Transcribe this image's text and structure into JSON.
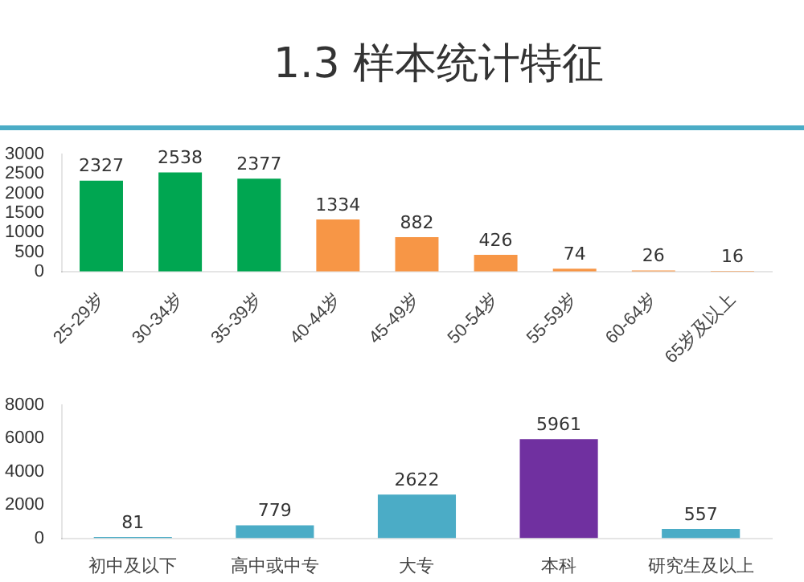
{
  "chart_data": [
    {
      "type": "bar",
      "title": "1.3 样本统计特征",
      "categories": [
        "25-29岁",
        "30-34岁",
        "35-39岁",
        "40-44岁",
        "45-49岁",
        "50-54岁",
        "55-59岁",
        "60-64岁",
        "65岁及以上"
      ],
      "values": [
        2327,
        2538,
        2377,
        1334,
        882,
        426,
        74,
        26,
        16
      ],
      "colors": [
        "#00a651",
        "#00a651",
        "#00a651",
        "#f79646",
        "#f79646",
        "#f79646",
        "#f79646",
        "#f79646",
        "#f79646"
      ],
      "ylim": [
        0,
        3000
      ],
      "yticks": [
        0,
        500,
        1000,
        1500,
        2000,
        2500,
        3000
      ],
      "data_labels": true,
      "grid": false,
      "legend": false
    },
    {
      "type": "bar",
      "categories": [
        "初中及以下",
        "高中或中专",
        "大专",
        "本科",
        "研究生及以上"
      ],
      "values": [
        81,
        779,
        2622,
        5961,
        557
      ],
      "colors": [
        "#4bacc6",
        "#4bacc6",
        "#4bacc6",
        "#7030a0",
        "#4bacc6"
      ],
      "ylim": [
        0,
        8000
      ],
      "yticks": [
        0,
        2000,
        4000,
        6000,
        8000
      ],
      "data_labels": true,
      "grid": false,
      "legend": false
    }
  ]
}
